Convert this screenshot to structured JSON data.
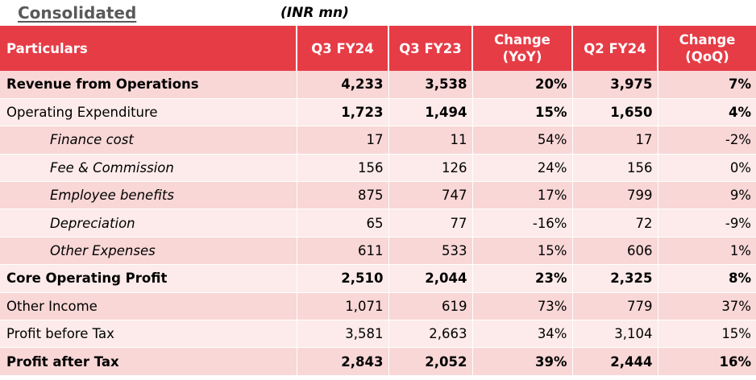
{
  "title": "Consolidated",
  "unit_note": "(INR mn)",
  "table": {
    "headers": [
      "Particulars",
      "Q3 FY24",
      "Q3 FY23",
      "Change\n(YoY)",
      "Q2 FY24",
      "Change\n(QoQ)"
    ],
    "header_colors": {
      "header_bg": "#e63c46",
      "row_odd": "#f8d7d6",
      "row_even": "#fcebea"
    },
    "rows": [
      {
        "label": "Revenue from Operations",
        "style": "bold",
        "values": [
          "4,233",
          "3,538",
          "20%",
          "3,975",
          "7%"
        ]
      },
      {
        "label": "Operating Expenditure",
        "style": "normal-bold-values",
        "values": [
          "1,723",
          "1,494",
          "15%",
          "1,650",
          "4%"
        ]
      },
      {
        "label": "Finance cost",
        "style": "sub",
        "values": [
          "17",
          "11",
          "54%",
          "17",
          "-2%"
        ]
      },
      {
        "label": "Fee & Commission",
        "style": "sub",
        "values": [
          "156",
          "126",
          "24%",
          "156",
          "0%"
        ]
      },
      {
        "label": "Employee benefits",
        "style": "sub",
        "values": [
          "875",
          "747",
          "17%",
          "799",
          "9%"
        ]
      },
      {
        "label": "Depreciation",
        "style": "sub",
        "values": [
          "65",
          "77",
          "-16%",
          "72",
          "-9%"
        ]
      },
      {
        "label": "Other Expenses",
        "style": "sub",
        "values": [
          "611",
          "533",
          "15%",
          "606",
          "1%"
        ]
      },
      {
        "label": "Core Operating Profit",
        "style": "bold",
        "values": [
          "2,510",
          "2,044",
          "23%",
          "2,325",
          "8%"
        ]
      },
      {
        "label": "Other Income",
        "style": "normal",
        "values": [
          "1,071",
          "619",
          "73%",
          "779",
          "37%"
        ]
      },
      {
        "label": "Profit before Tax",
        "style": "normal",
        "values": [
          "3,581",
          "2,663",
          "34%",
          "3,104",
          "15%"
        ]
      },
      {
        "label": "Profit after Tax",
        "style": "bold",
        "values": [
          "2,843",
          "2,052",
          "39%",
          "2,444",
          "16%"
        ]
      }
    ]
  }
}
